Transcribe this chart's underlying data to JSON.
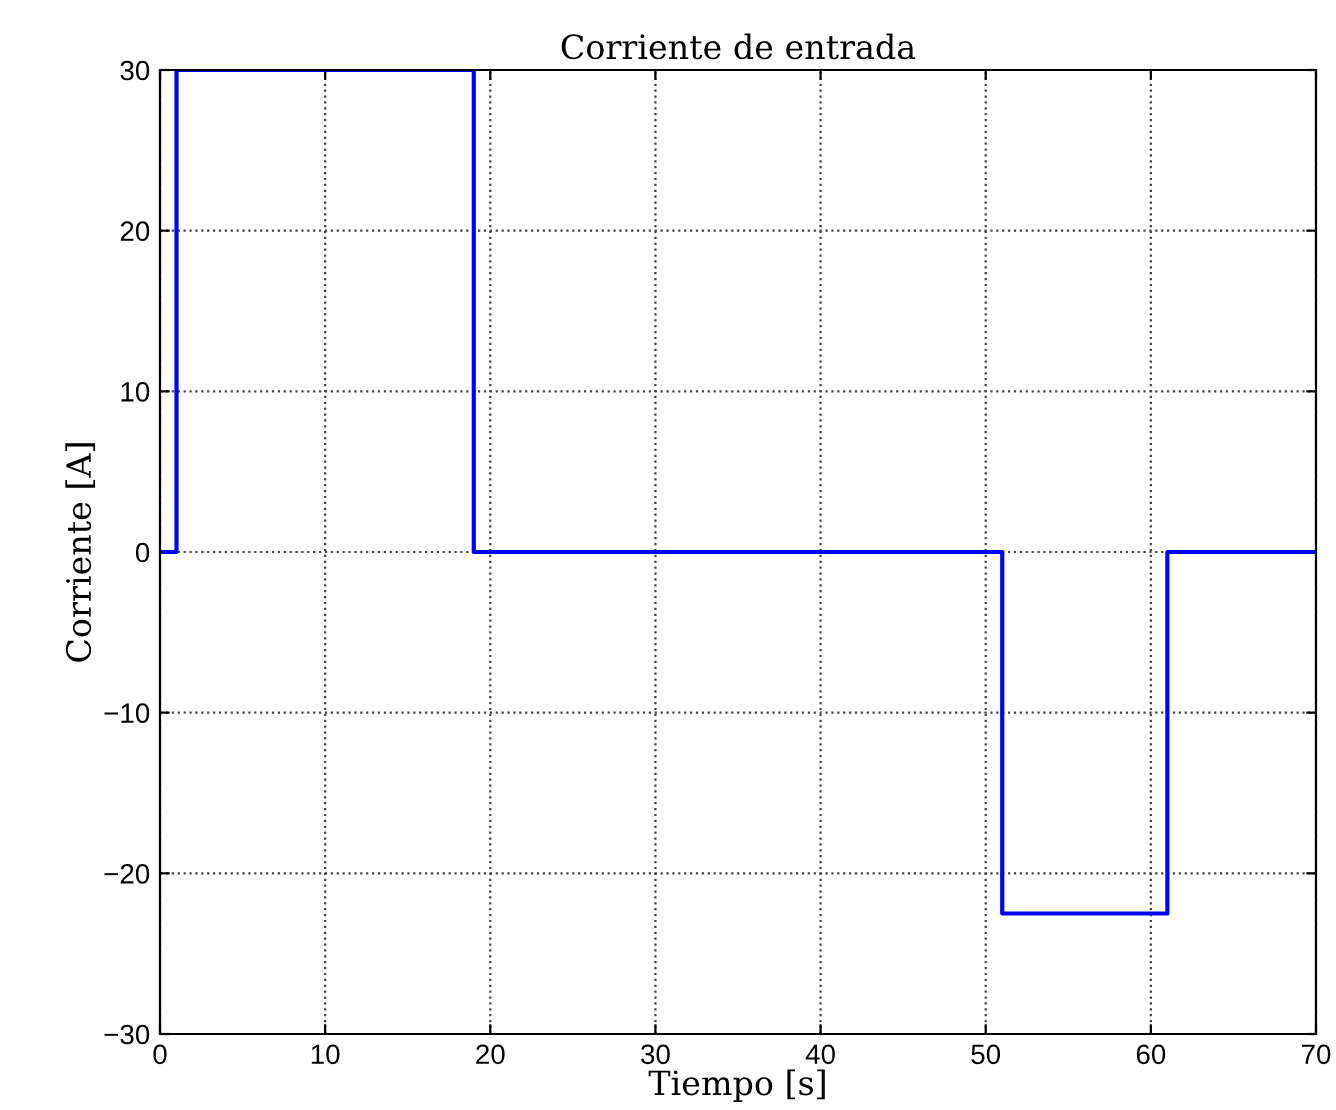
{
  "chart_data": {
    "type": "step",
    "title": "Corriente de entrada",
    "xlabel": "Tiempo [s]",
    "ylabel": "Corriente [A]",
    "x": [
      0,
      1,
      19,
      51,
      61,
      70
    ],
    "series": [
      {
        "color": "#0000ff",
        "values": [
          0,
          30,
          0,
          -22.5,
          0,
          0
        ]
      }
    ],
    "xlim": [
      0,
      70
    ],
    "xticks": [
      0,
      10,
      20,
      30,
      40,
      50,
      60,
      70
    ],
    "ylim": [
      -30,
      30
    ],
    "yticks": [
      {
        "value": -30,
        "label": "−30"
      },
      {
        "value": -20,
        "label": "−20"
      },
      {
        "value": -10,
        "label": "−10"
      },
      0,
      10,
      20,
      30
    ],
    "grid": true,
    "line_style": "solid",
    "marker": "none"
  }
}
